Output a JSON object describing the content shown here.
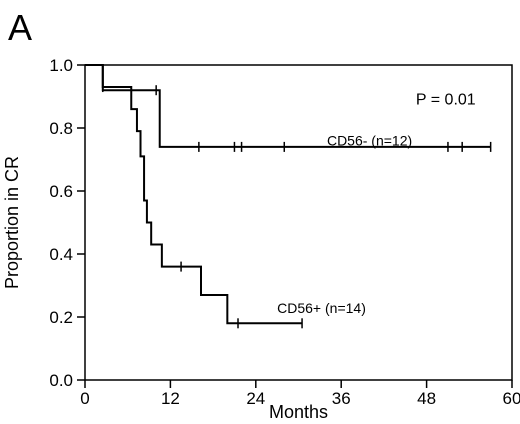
{
  "panel_label": "A",
  "chart_data": {
    "type": "line",
    "subtype": "kaplan-meier-step",
    "xlabel": "Months",
    "ylabel": "Proportion in CR",
    "xlim": [
      0,
      60
    ],
    "ylim": [
      0,
      1.0
    ],
    "xticks": [
      0,
      12,
      24,
      36,
      48,
      60
    ],
    "yticks": [
      0.0,
      0.2,
      0.4,
      0.6,
      0.8,
      1.0
    ],
    "ytick_labels": [
      "0.0",
      "0.2",
      "0.4",
      "0.6",
      "0.8",
      "1.0"
    ],
    "grid": false,
    "annotation": "P = 0.01",
    "series": [
      {
        "name": "CD56- (n=12)",
        "steps": [
          [
            0,
            1.0
          ],
          [
            2.5,
            0.92
          ],
          [
            10.5,
            0.74
          ],
          [
            57,
            0.74
          ]
        ],
        "censor": [
          10,
          16,
          21,
          22,
          28,
          51,
          53,
          57
        ],
        "label_at": [
          34,
          0.745
        ]
      },
      {
        "name": "CD56+ (n=14)",
        "steps": [
          [
            0,
            1.0
          ],
          [
            2.5,
            0.93
          ],
          [
            6.5,
            0.86
          ],
          [
            7.3,
            0.79
          ],
          [
            7.8,
            0.71
          ],
          [
            8.3,
            0.57
          ],
          [
            8.7,
            0.5
          ],
          [
            9.3,
            0.43
          ],
          [
            10.8,
            0.36
          ],
          [
            16.3,
            0.27
          ],
          [
            20,
            0.18
          ],
          [
            30.5,
            0.18
          ]
        ],
        "censor": [
          2.5,
          13.5,
          21.5,
          30.5
        ],
        "label_at": [
          27,
          0.212
        ]
      }
    ]
  }
}
